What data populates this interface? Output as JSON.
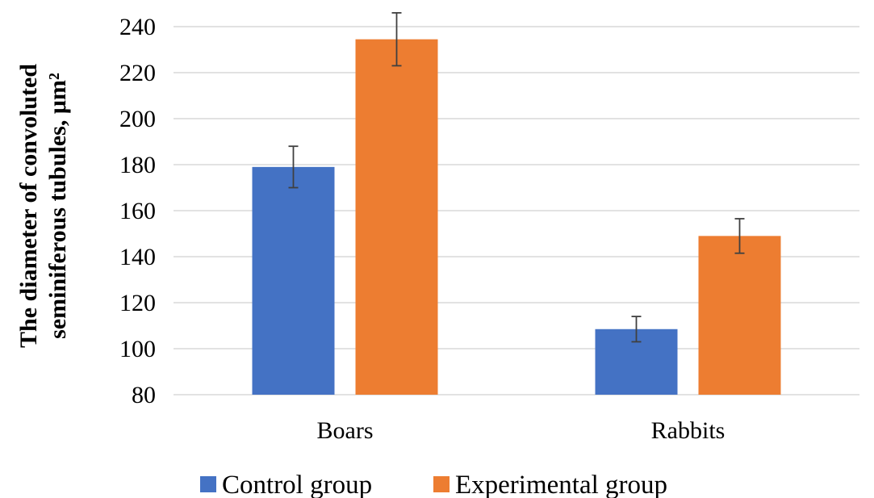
{
  "chart_data": {
    "type": "bar",
    "categories": [
      "Boars",
      "Rabbits"
    ],
    "series": [
      {
        "name": "Control group",
        "color": "#4472C4",
        "values": [
          179,
          108.5
        ],
        "errors": [
          9,
          5.5
        ]
      },
      {
        "name": "Experimental group",
        "color": "#ED7D31",
        "values": [
          234.5,
          149
        ],
        "errors": [
          11.5,
          7.5
        ]
      }
    ],
    "ylabel_lines": [
      "The diameter of convoluted",
      "seminiferous tubules, μm²"
    ],
    "ylim": [
      80,
      240
    ],
    "yticks": [
      80,
      100,
      120,
      140,
      160,
      180,
      200,
      220,
      240
    ],
    "grid": true,
    "legend_position": "bottom"
  }
}
